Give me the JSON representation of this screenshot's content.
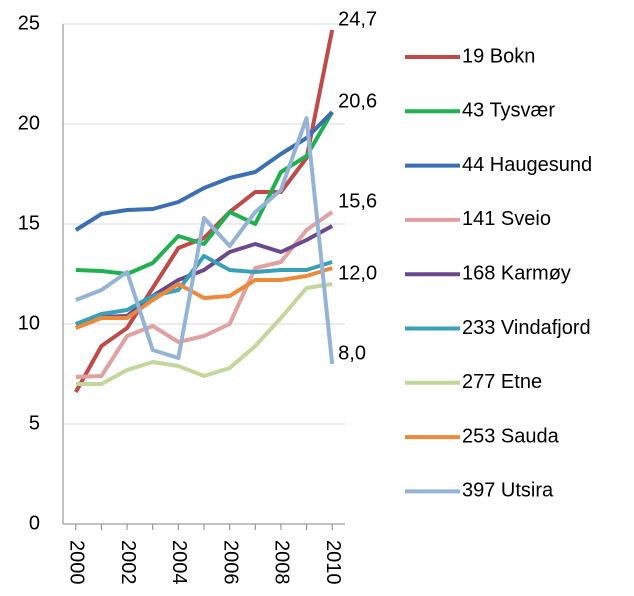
{
  "chart_data": {
    "type": "line",
    "x": [
      2000,
      2001,
      2002,
      2003,
      2004,
      2005,
      2006,
      2007,
      2008,
      2009,
      2010
    ],
    "xlim": [
      1999.5,
      2010.5
    ],
    "xticks": [
      2000,
      2002,
      2004,
      2006,
      2008,
      2010
    ],
    "ylim": [
      0,
      25
    ],
    "yticks": [
      0,
      5,
      10,
      15,
      20,
      25
    ],
    "grid": true,
    "legend": "right",
    "series": [
      {
        "name": "19 Bokn",
        "color": "#be4b48",
        "label_color": "#be4b48",
        "values": [
          6.6,
          8.9,
          9.8,
          11.8,
          13.8,
          14.3,
          15.6,
          16.6,
          16.6,
          18.3,
          24.7
        ],
        "value_labels": [
          null,
          null,
          null,
          null,
          null,
          null,
          null,
          null,
          null,
          null,
          "24,7"
        ]
      },
      {
        "name": "43 Tysvær",
        "color": "#1fb04f",
        "values": [
          12.7,
          12.65,
          12.5,
          13.05,
          14.4,
          14.0,
          15.6,
          15.0,
          17.6,
          18.4,
          20.6
        ]
      },
      {
        "name": "44 Haugesund",
        "color": "#3c6eb4",
        "label_color": "#2f5f9e",
        "values": [
          14.7,
          15.5,
          15.7,
          15.75,
          16.1,
          16.8,
          17.3,
          17.6,
          18.5,
          19.3,
          20.6
        ],
        "value_labels": [
          null,
          null,
          null,
          null,
          null,
          null,
          null,
          null,
          null,
          null,
          "20,6"
        ]
      },
      {
        "name": "141 Sveio",
        "color": "#e0a1a0",
        "label_color": "#d9706d",
        "values": [
          7.35,
          7.4,
          9.4,
          9.9,
          9.1,
          9.4,
          10.0,
          12.8,
          13.1,
          14.7,
          15.6
        ],
        "value_labels": [
          null,
          null,
          null,
          null,
          null,
          null,
          null,
          null,
          null,
          null,
          "15,6"
        ]
      },
      {
        "name": "168 Karmøy",
        "color": "#6a4a8c",
        "values": [
          10.0,
          10.35,
          10.4,
          11.4,
          12.2,
          12.7,
          13.6,
          14.0,
          13.6,
          14.2,
          14.9
        ]
      },
      {
        "name": "233 Vindafjord",
        "color": "#3aa0b8",
        "values": [
          10.0,
          10.5,
          10.7,
          11.4,
          11.7,
          13.4,
          12.7,
          12.6,
          12.7,
          12.7,
          13.1
        ]
      },
      {
        "name": "277 Etne",
        "color": "#c3d69b",
        "label_color": "#77933c",
        "values": [
          7.0,
          7.0,
          7.7,
          8.1,
          7.9,
          7.4,
          7.8,
          8.9,
          10.3,
          11.8,
          12.0
        ],
        "value_labels": [
          null,
          null,
          null,
          null,
          null,
          null,
          null,
          null,
          null,
          null,
          "12,0"
        ]
      },
      {
        "name": "253 Sauda",
        "color": "#ec8a3c",
        "values": [
          9.8,
          10.3,
          10.3,
          11.2,
          12.0,
          11.3,
          11.4,
          12.2,
          12.2,
          12.4,
          12.8
        ]
      },
      {
        "name": "397 Utsira",
        "color": "#95b3d7",
        "label_color": "#1f497d",
        "values": [
          11.2,
          11.7,
          12.6,
          8.7,
          8.3,
          15.3,
          13.9,
          15.6,
          16.7,
          20.3,
          8.0
        ],
        "value_labels": [
          null,
          null,
          null,
          null,
          null,
          null,
          null,
          null,
          null,
          null,
          "8,0"
        ]
      }
    ]
  }
}
